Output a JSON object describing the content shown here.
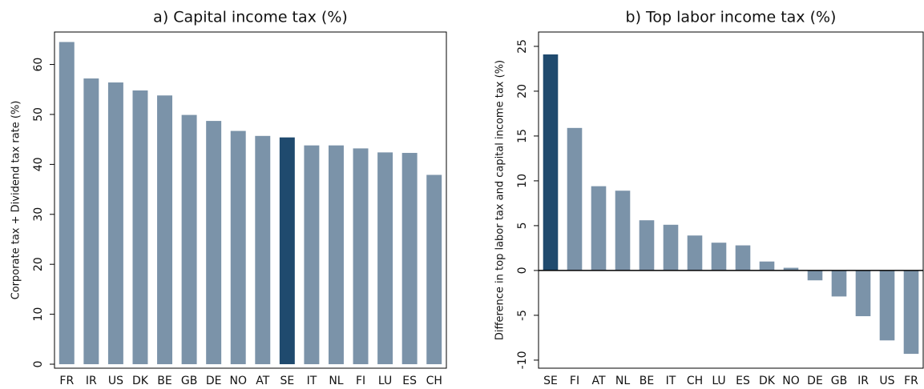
{
  "chart_data": [
    {
      "type": "bar",
      "title": "a) Capital income tax (%)",
      "y_label": "Corporate tax + Dividend tax rate (%)",
      "categories": [
        "FR",
        "IR",
        "US",
        "DK",
        "BE",
        "GB",
        "DE",
        "NO",
        "AT",
        "SE",
        "IT",
        "NL",
        "FI",
        "LU",
        "ES",
        "CH"
      ],
      "values": [
        64.5,
        57.2,
        56.4,
        54.8,
        53.8,
        49.9,
        48.7,
        46.7,
        45.7,
        45.4,
        43.8,
        43.8,
        43.2,
        42.4,
        42.3,
        37.9
      ],
      "colors": [
        "#7b93a9",
        "#7b93a9",
        "#7b93a9",
        "#7b93a9",
        "#7b93a9",
        "#7b93a9",
        "#7b93a9",
        "#7b93a9",
        "#7b93a9",
        "#1f4a6e",
        "#7b93a9",
        "#7b93a9",
        "#7b93a9",
        "#7b93a9",
        "#7b93a9",
        "#7b93a9"
      ],
      "ylim": [
        -0.8,
        66.5
      ],
      "yticks": [
        0,
        10,
        20,
        30,
        40,
        50,
        60
      ]
    },
    {
      "type": "bar",
      "title": "b) Top labor income tax (%)",
      "y_label": "Difference in top labor tax and capital income tax (%)",
      "categories": [
        "SE",
        "FI",
        "AT",
        "NL",
        "BE",
        "IT",
        "CH",
        "LU",
        "ES",
        "DK",
        "NO",
        "DE",
        "GB",
        "IR",
        "US",
        "FR"
      ],
      "values": [
        24.1,
        15.9,
        9.4,
        8.9,
        5.6,
        5.1,
        3.9,
        3.1,
        2.8,
        1.0,
        0.3,
        -1.1,
        -2.9,
        -5.1,
        -7.8,
        -9.3
      ],
      "colors": [
        "#1f4a6e",
        "#7b93a9",
        "#7b93a9",
        "#7b93a9",
        "#7b93a9",
        "#7b93a9",
        "#7b93a9",
        "#7b93a9",
        "#7b93a9",
        "#7b93a9",
        "#7b93a9",
        "#7b93a9",
        "#7b93a9",
        "#7b93a9",
        "#7b93a9",
        "#7b93a9"
      ],
      "ylim": [
        -10.9,
        26.6
      ],
      "yticks": [
        -10,
        -5,
        0,
        5,
        10,
        15,
        20,
        25
      ],
      "zero_line": true
    }
  ]
}
